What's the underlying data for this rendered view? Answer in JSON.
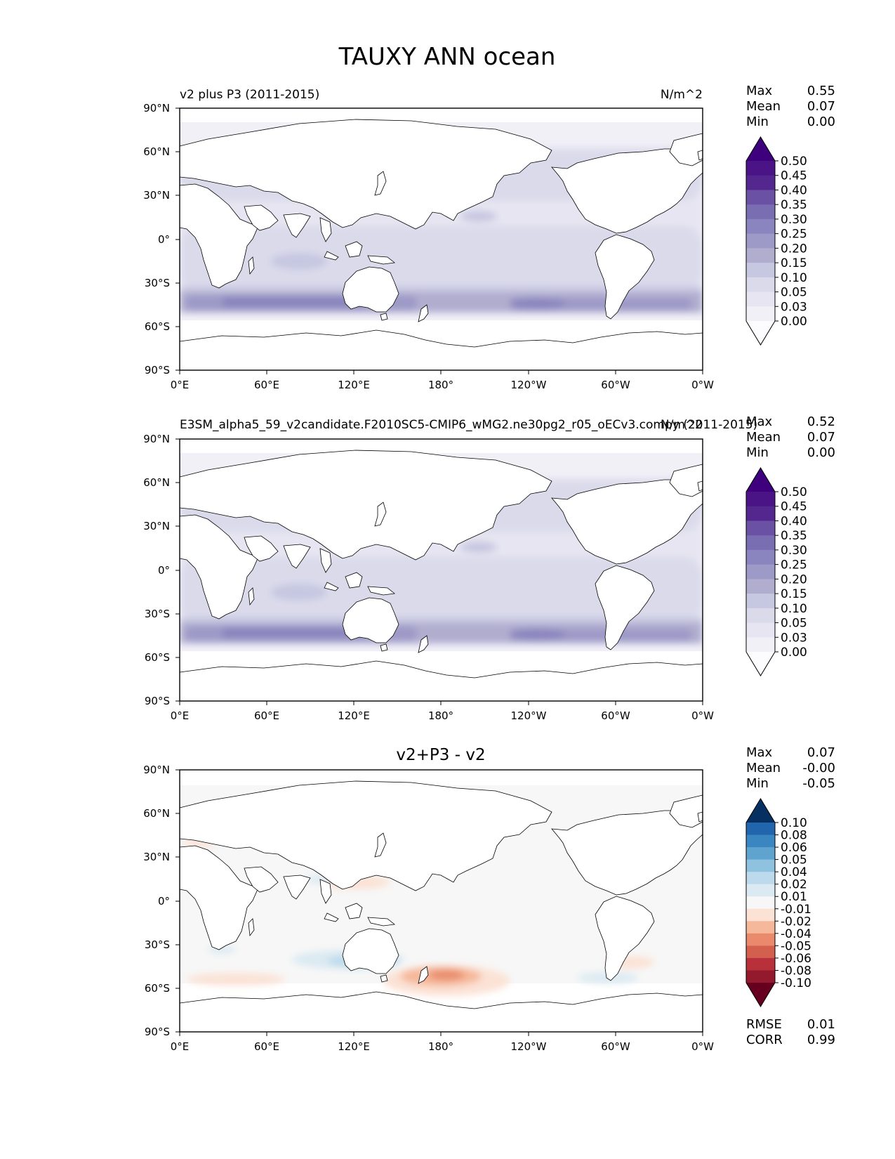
{
  "figure": {
    "title": "TAUXY ANN ocean"
  },
  "axes": {
    "lat_ticks": [
      "90°N",
      "60°N",
      "30°N",
      "0°",
      "30°S",
      "60°S",
      "90°S"
    ],
    "lon_ticks": [
      "0°E",
      "60°E",
      "120°E",
      "180°",
      "120°W",
      "60°W",
      "0°W"
    ]
  },
  "panels": [
    {
      "title_left": "v2 plus P3 (2011-2015)",
      "title_center": "",
      "units": "N/m^2",
      "stats": {
        "max_label": "Max",
        "max": "0.55",
        "mean_label": "Mean",
        "mean": "0.07",
        "min_label": "Min",
        "min": "0.00"
      },
      "colorbar": {
        "levels": [
          "0.50",
          "0.45",
          "0.40",
          "0.35",
          "0.30",
          "0.25",
          "0.20",
          "0.15",
          "0.10",
          "0.05",
          "0.03",
          "0.00"
        ],
        "colors": [
          "#3f007d",
          "#4a1486",
          "#54278f",
          "#6a51a3",
          "#796eb2",
          "#8a85be",
          "#9e9ac8",
          "#b0adcf",
          "#c6c7e1",
          "#dadaeb",
          "#e6e5f1",
          "#f2f0f7",
          "#fcfbfd"
        ]
      }
    },
    {
      "title_left": "E3SM_alpha5_59_v2candidate.F2010SC5-CMIP6_wMG2.ne30pg2_r05_oECv3.compy (2011-2015)",
      "title_center": "",
      "units": "N/m^2",
      "stats": {
        "max_label": "Max",
        "max": "0.52",
        "mean_label": "Mean",
        "mean": "0.07",
        "min_label": "Min",
        "min": "0.00"
      },
      "colorbar": {
        "levels": [
          "0.50",
          "0.45",
          "0.40",
          "0.35",
          "0.30",
          "0.25",
          "0.20",
          "0.15",
          "0.10",
          "0.05",
          "0.03",
          "0.00"
        ],
        "colors": [
          "#3f007d",
          "#4a1486",
          "#54278f",
          "#6a51a3",
          "#796eb2",
          "#8a85be",
          "#9e9ac8",
          "#b0adcf",
          "#c6c7e1",
          "#dadaeb",
          "#e6e5f1",
          "#f2f0f7",
          "#fcfbfd"
        ]
      }
    },
    {
      "title_left": "",
      "title_center": "v2+P3 - v2",
      "units": "",
      "stats": {
        "max_label": "Max",
        "max": "0.07",
        "mean_label": "Mean",
        "mean": "-0.00",
        "min_label": "Min",
        "min": "-0.05"
      },
      "colorbar": {
        "levels": [
          "0.10",
          "0.08",
          "0.06",
          "0.05",
          "0.04",
          "0.02",
          "0.01",
          "-0.01",
          "-0.02",
          "-0.04",
          "-0.05",
          "-0.06",
          "-0.08",
          "-0.10"
        ],
        "colors": [
          "#053061",
          "#2166ac",
          "#3a86c0",
          "#5fa3cf",
          "#8fc2de",
          "#bcdaeb",
          "#dbeaf2",
          "#f7f7f7",
          "#fbe2d5",
          "#f6b89a",
          "#e98a6c",
          "#d35f4e",
          "#b8303a",
          "#931a2c",
          "#67001f"
        ]
      },
      "footer": {
        "rmse_label": "RMSE",
        "rmse": "0.01",
        "corr_label": "CORR",
        "corr": "0.99"
      }
    }
  ]
}
